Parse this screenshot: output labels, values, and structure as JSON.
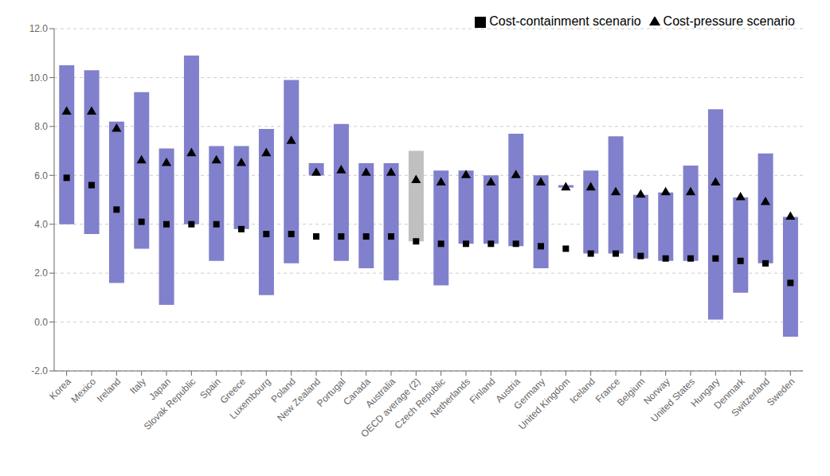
{
  "chart_data": {
    "type": "bar",
    "categories": [
      "Korea",
      "Mexico",
      "Ireland",
      "Italy",
      "Japan",
      "Slovak Republic",
      "Spain",
      "Greece",
      "Luxembourg",
      "Poland",
      "New Zealand",
      "Portugal",
      "Canada",
      "Australia",
      "OECD average (2)",
      "Czech Republic",
      "Netherlands",
      "Finland",
      "Austria",
      "Germany",
      "United Kingdom",
      "Iceland",
      "France",
      "Belgium",
      "Norway",
      "United States",
      "Hungary",
      "Denmark",
      "Switzerland",
      "Sweden"
    ],
    "series": [
      {
        "type": "range_bar",
        "low": [
          4.0,
          3.6,
          1.6,
          3.0,
          0.7,
          4.0,
          2.5,
          3.8,
          1.1,
          2.4,
          6.0,
          2.5,
          2.2,
          1.7,
          3.3,
          1.5,
          3.2,
          3.2,
          3.1,
          2.2,
          5.5,
          2.8,
          2.8,
          2.6,
          2.5,
          2.5,
          0.1,
          1.2,
          2.4,
          -0.6
        ],
        "high": [
          10.5,
          10.3,
          8.2,
          9.4,
          7.1,
          10.9,
          7.2,
          7.2,
          7.9,
          9.9,
          6.5,
          8.1,
          6.5,
          6.5,
          7.0,
          6.2,
          6.2,
          6.0,
          7.7,
          6.0,
          5.6,
          6.2,
          7.6,
          5.2,
          5.3,
          6.4,
          8.7,
          5.1,
          6.9,
          4.3
        ],
        "colors": [
          "#8080CC",
          "#8080CC",
          "#8080CC",
          "#8080CC",
          "#8080CC",
          "#8080CC",
          "#8080CC",
          "#8080CC",
          "#8080CC",
          "#8080CC",
          "#8080CC",
          "#8080CC",
          "#8080CC",
          "#8080CC",
          "#C0C0C0",
          "#8080CC",
          "#8080CC",
          "#8080CC",
          "#8080CC",
          "#8080CC",
          "#8080CC",
          "#8080CC",
          "#8080CC",
          "#8080CC",
          "#8080CC",
          "#8080CC",
          "#8080CC",
          "#8080CC",
          "#8080CC",
          "#8080CC"
        ]
      },
      {
        "name": "Cost-pressure scenario",
        "type": "scatter",
        "marker": "triangle",
        "color": "black",
        "values": [
          8.6,
          8.6,
          7.9,
          6.6,
          6.5,
          6.9,
          6.6,
          6.5,
          6.9,
          7.4,
          6.1,
          6.2,
          6.1,
          6.1,
          5.8,
          5.7,
          6.0,
          5.7,
          6.0,
          5.7,
          5.5,
          5.5,
          5.3,
          5.2,
          5.3,
          5.3,
          5.7,
          5.1,
          4.9,
          4.3
        ]
      },
      {
        "name": "Cost-containment scenario",
        "type": "scatter",
        "marker": "square",
        "color": "black",
        "values": [
          5.9,
          5.6,
          4.6,
          4.1,
          4.0,
          4.0,
          4.0,
          3.8,
          3.6,
          3.6,
          3.5,
          3.5,
          3.5,
          3.5,
          3.3,
          3.2,
          3.2,
          3.2,
          3.2,
          3.1,
          3.0,
          2.8,
          2.8,
          2.7,
          2.6,
          2.6,
          2.6,
          2.5,
          2.4,
          1.6
        ]
      }
    ],
    "ylim": [
      -2.0,
      12.0
    ],
    "yticks": [
      {
        "value": -2,
        "label": "-2.0"
      },
      {
        "value": 0,
        "label": "0.0"
      },
      {
        "value": 2,
        "label": "2.0"
      },
      {
        "value": 4,
        "label": "4.0"
      },
      {
        "value": 6,
        "label": "6.0"
      },
      {
        "value": 8,
        "label": "8.0"
      },
      {
        "value": 10,
        "label": "10.0"
      },
      {
        "value": 12,
        "label": "12.0"
      }
    ],
    "grid": true,
    "legend": "upper right"
  }
}
